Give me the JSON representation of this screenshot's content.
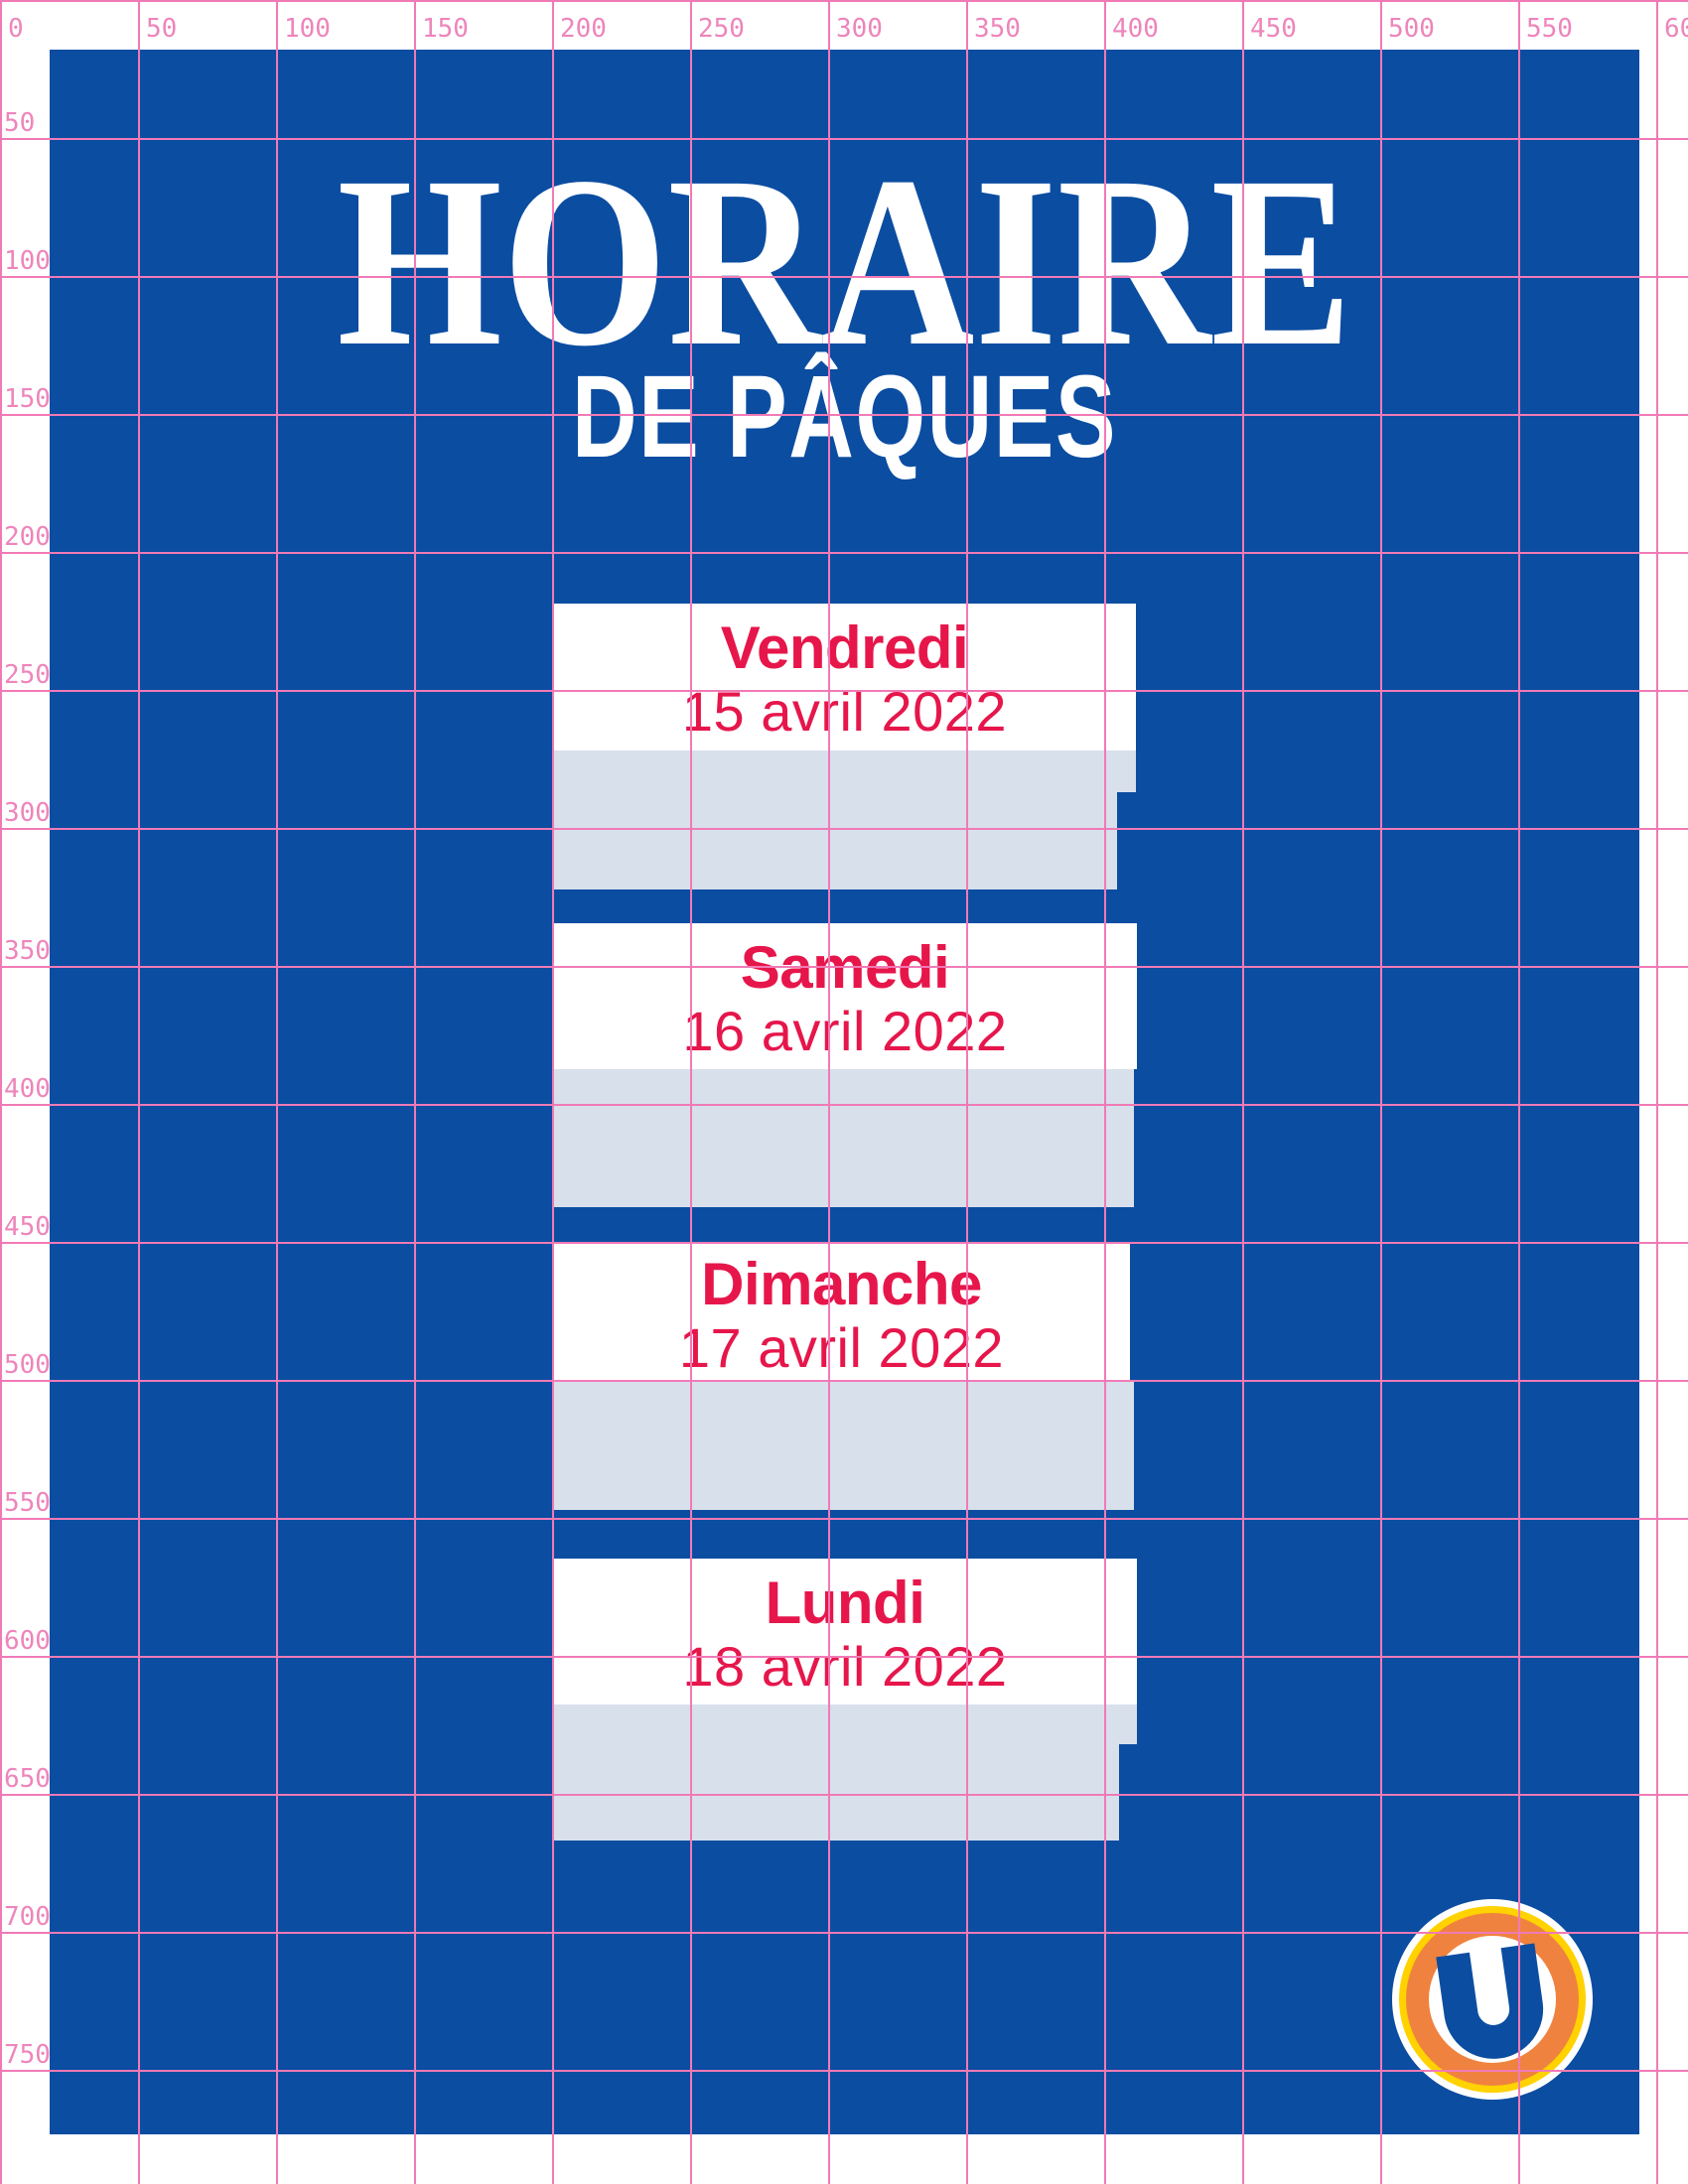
{
  "ruler": {
    "unit_step": 50,
    "top_labels": [
      "0",
      "50",
      "100",
      "150",
      "200",
      "250",
      "300",
      "350",
      "400",
      "450",
      "500",
      "550",
      "600"
    ],
    "left_labels": [
      "50",
      "100",
      "150",
      "200",
      "250",
      "300",
      "350",
      "400",
      "450",
      "500",
      "550",
      "600",
      "650",
      "700",
      "750"
    ]
  },
  "poster": {
    "title_line1": "HORAIRE",
    "title_line2": "DE PÂQUES",
    "cards": [
      {
        "day": "Vendredi",
        "date": "15 avril 2022"
      },
      {
        "day": "Samedi",
        "date": "16 avril 2022"
      },
      {
        "day": "Dimanche",
        "date": "17 avril 2022"
      },
      {
        "day": "Lundi",
        "date": "18 avril 2022"
      }
    ],
    "logo": {
      "letter": "U",
      "brand": "U"
    }
  },
  "colors": {
    "blue": "#0b4da1",
    "card_gray": "#d8e0ec",
    "red": "#e6164b",
    "pink_line": "#f17ab6",
    "pink_label": "#ee85bb",
    "logo_orange": "#f0823f",
    "logo_yellow": "#ffd200",
    "white": "#ffffff"
  }
}
